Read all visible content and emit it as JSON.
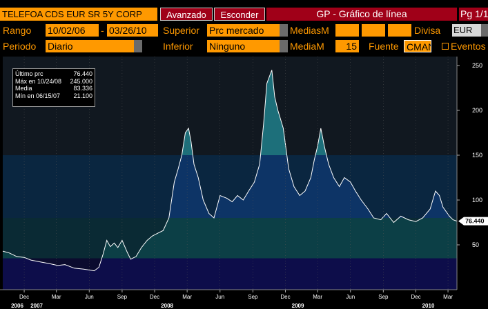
{
  "header": {
    "security": "TELEFOA CDS EUR SR 5Y CORP",
    "advanced_btn": "Avanzado",
    "hide_btn": "Esconder",
    "title": "GP - Gráfico de línea",
    "page": "Pg 1/1"
  },
  "controls": {
    "range_label": "Rango",
    "range_start": "10/02/06",
    "range_sep": "-",
    "range_end": "03/26/10",
    "upper_label": "Superior",
    "upper_value": "Prc mercado",
    "ma_label_1": "MediasM",
    "currency_label": "Divisa",
    "currency_value": "EUR",
    "period_label": "Periodo",
    "period_value": "Diario",
    "lower_label": "Inferior",
    "lower_value": "Ninguno",
    "ma_label_2": "MediaM",
    "ma_value": "15",
    "source_label": "Fuente",
    "source_value": "CMAN",
    "events_label": "Eventos"
  },
  "legend": {
    "rows": [
      {
        "label": "Último prc",
        "value": "76.440"
      },
      {
        "label": "Máx en 10/24/08",
        "value": "245.000"
      },
      {
        "label": "Media",
        "value": "83.336"
      },
      {
        "label": "Mín en 06/15/07",
        "value": "21.100"
      }
    ]
  },
  "colors": {
    "accent": "#ff9900",
    "title_bar": "#a00018",
    "band_0_35": "#0d0d4a",
    "band_35_80": "#0c3f46",
    "band_80_150": "#0d3466",
    "band_150_plus": "#1d6f7a",
    "line": "#ffffff"
  },
  "chart_data": {
    "type": "area",
    "title": "",
    "ylim": [
      0,
      260
    ],
    "y_ticks": [
      50,
      100,
      150,
      200,
      250
    ],
    "last_value_label": "76.440",
    "x_major_labels": [
      {
        "label": "2006",
        "date": "2006-10-02"
      },
      {
        "label": "2007",
        "date": "2007-01-01"
      },
      {
        "label": "2008",
        "date": "2008-01-01"
      },
      {
        "label": "2009",
        "date": "2009-01-01"
      },
      {
        "label": "2010",
        "date": "2010-01-01"
      }
    ],
    "x_minor_labels": [
      {
        "label": "Dec",
        "date": "2006-12-01"
      },
      {
        "label": "Mar",
        "date": "2007-03-01"
      },
      {
        "label": "Jun",
        "date": "2007-06-01"
      },
      {
        "label": "Sep",
        "date": "2007-09-01"
      },
      {
        "label": "Dec",
        "date": "2007-12-01"
      },
      {
        "label": "Mar",
        "date": "2008-03-01"
      },
      {
        "label": "Jun",
        "date": "2008-06-01"
      },
      {
        "label": "Sep",
        "date": "2008-09-01"
      },
      {
        "label": "Dec",
        "date": "2008-12-01"
      },
      {
        "label": "Mar",
        "date": "2009-03-01"
      },
      {
        "label": "Jun",
        "date": "2009-06-01"
      },
      {
        "label": "Sep",
        "date": "2009-09-01"
      },
      {
        "label": "Dec",
        "date": "2009-12-01"
      },
      {
        "label": "Mar",
        "date": "2010-03-01"
      }
    ],
    "series": [
      {
        "values": [
          [
            "2006-10-02",
            43
          ],
          [
            "2006-10-20",
            41
          ],
          [
            "2006-11-10",
            37
          ],
          [
            "2006-12-01",
            36
          ],
          [
            "2006-12-20",
            33
          ],
          [
            "2007-01-15",
            31
          ],
          [
            "2007-02-10",
            29
          ],
          [
            "2007-03-05",
            27
          ],
          [
            "2007-03-25",
            28
          ],
          [
            "2007-04-20",
            24
          ],
          [
            "2007-05-15",
            23
          ],
          [
            "2007-06-15",
            21.1
          ],
          [
            "2007-06-28",
            25
          ],
          [
            "2007-07-10",
            40
          ],
          [
            "2007-07-20",
            55
          ],
          [
            "2007-07-30",
            48
          ],
          [
            "2007-08-10",
            52
          ],
          [
            "2007-08-20",
            47
          ],
          [
            "2007-09-01",
            55
          ],
          [
            "2007-09-15",
            42
          ],
          [
            "2007-09-25",
            34
          ],
          [
            "2007-10-10",
            37
          ],
          [
            "2007-10-25",
            47
          ],
          [
            "2007-11-10",
            55
          ],
          [
            "2007-11-25",
            60
          ],
          [
            "2007-12-10",
            63
          ],
          [
            "2007-12-25",
            66
          ],
          [
            "2008-01-10",
            80
          ],
          [
            "2008-01-25",
            120
          ],
          [
            "2008-02-05",
            135
          ],
          [
            "2008-02-15",
            150
          ],
          [
            "2008-02-25",
            175
          ],
          [
            "2008-03-05",
            180
          ],
          [
            "2008-03-12",
            165
          ],
          [
            "2008-03-20",
            140
          ],
          [
            "2008-04-01",
            125
          ],
          [
            "2008-04-15",
            100
          ],
          [
            "2008-05-01",
            85
          ],
          [
            "2008-05-15",
            80
          ],
          [
            "2008-06-01",
            105
          ],
          [
            "2008-06-20",
            102
          ],
          [
            "2008-07-05",
            98
          ],
          [
            "2008-07-20",
            105
          ],
          [
            "2008-08-05",
            100
          ],
          [
            "2008-08-20",
            110
          ],
          [
            "2008-09-05",
            120
          ],
          [
            "2008-09-20",
            140
          ],
          [
            "2008-10-01",
            185
          ],
          [
            "2008-10-10",
            230
          ],
          [
            "2008-10-24",
            245
          ],
          [
            "2008-11-01",
            215
          ],
          [
            "2008-11-10",
            200
          ],
          [
            "2008-11-25",
            180
          ],
          [
            "2008-12-10",
            135
          ],
          [
            "2008-12-25",
            115
          ],
          [
            "2009-01-10",
            105
          ],
          [
            "2009-01-25",
            110
          ],
          [
            "2009-02-10",
            125
          ],
          [
            "2009-02-20",
            145
          ],
          [
            "2009-03-01",
            160
          ],
          [
            "2009-03-10",
            180
          ],
          [
            "2009-03-20",
            160
          ],
          [
            "2009-04-01",
            140
          ],
          [
            "2009-04-15",
            125
          ],
          [
            "2009-05-01",
            115
          ],
          [
            "2009-05-15",
            125
          ],
          [
            "2009-06-01",
            120
          ],
          [
            "2009-06-15",
            110
          ],
          [
            "2009-07-01",
            100
          ],
          [
            "2009-07-20",
            90
          ],
          [
            "2009-08-05",
            80
          ],
          [
            "2009-08-25",
            78
          ],
          [
            "2009-09-10",
            85
          ],
          [
            "2009-09-30",
            75
          ],
          [
            "2009-10-20",
            82
          ],
          [
            "2009-11-10",
            78
          ],
          [
            "2009-12-01",
            76
          ],
          [
            "2009-12-20",
            80
          ],
          [
            "2010-01-10",
            90
          ],
          [
            "2010-01-25",
            110
          ],
          [
            "2010-02-05",
            105
          ],
          [
            "2010-02-15",
            92
          ],
          [
            "2010-03-05",
            82
          ],
          [
            "2010-03-15",
            78
          ],
          [
            "2010-03-26",
            76.44
          ]
        ]
      }
    ]
  }
}
